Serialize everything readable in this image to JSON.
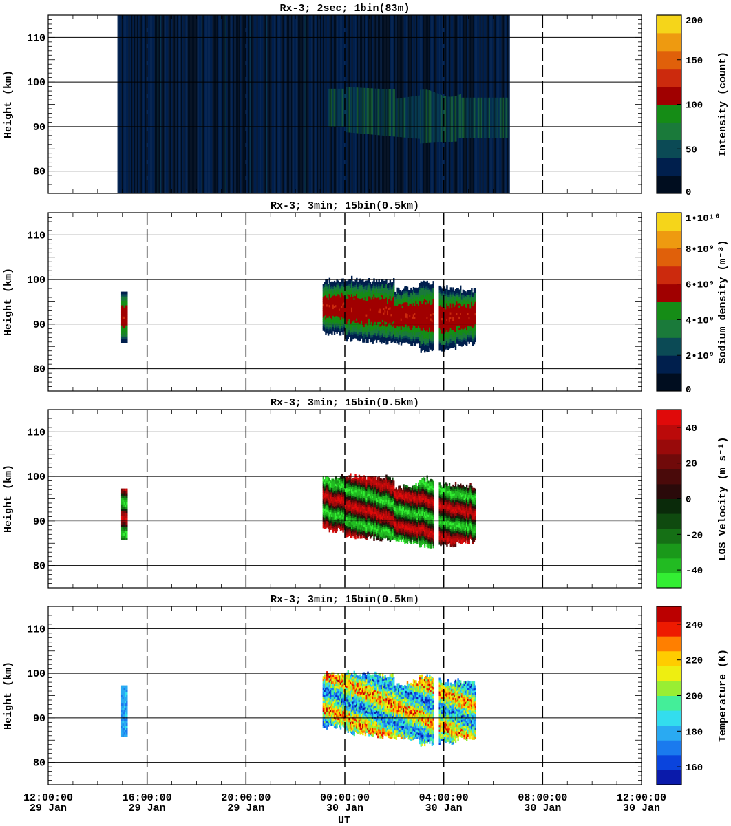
{
  "chart_data": [
    {
      "type": "heatmap",
      "title": "Rx-3;  2sec; 1bin(83m)",
      "ylabel": "Height (km)",
      "ylim": [
        75,
        115
      ],
      "y_ticks": [
        "80",
        "90",
        "100",
        "110"
      ],
      "colorbar": {
        "label": "Intensity (count)",
        "range": [
          0,
          200
        ],
        "ticks": [
          "0",
          "50",
          "100",
          "150",
          "200"
        ],
        "colors": [
          "#000d1f",
          "#001f4d",
          "#0b4a55",
          "#1a7a3a",
          "#158c16",
          "#a00000",
          "#cc2a0d",
          "#e0600a",
          "#ee9a10",
          "#f5d51a"
        ]
      },
      "data_start": "29 Jan 14:50",
      "data_end": "30 Jan 06:40",
      "layer_km": [
        85,
        98
      ]
    },
    {
      "type": "heatmap",
      "title": "Rx-3; 3min; 15bin(0.5km)",
      "ylabel": "Height (km)",
      "ylim": [
        75,
        115
      ],
      "y_ticks": [
        "80",
        "90",
        "100",
        "110"
      ],
      "colorbar": {
        "label": "Sodium density (m⁻³)",
        "range": [
          0,
          10000000000
        ],
        "ticks": [
          "0",
          "2•10⁹",
          "4•10⁹",
          "6•10⁹",
          "8•10⁹",
          "1•10¹⁰"
        ],
        "colors": [
          "#000d1f",
          "#001f4d",
          "#0b4a55",
          "#1a7a3a",
          "#158c16",
          "#a00000",
          "#cc2a0d",
          "#e0600a",
          "#ee9a10",
          "#f5d51a"
        ]
      }
    },
    {
      "type": "heatmap",
      "title": "Rx-3; 3min; 15bin(0.5km)",
      "ylabel": "Height (km)",
      "ylim": [
        75,
        115
      ],
      "y_ticks": [
        "80",
        "90",
        "100",
        "110"
      ],
      "colorbar": {
        "label": "LOS Velocity (m s⁻¹)",
        "range": [
          -50,
          50
        ],
        "ticks": [
          "-40",
          "-20",
          "0",
          "20",
          "40"
        ],
        "colors": [
          "#33ee33",
          "#22bb22",
          "#1a991a",
          "#157015",
          "#0f4a0f",
          "#0a2a0a",
          "#2a0a0a",
          "#4a0a0a",
          "#700a0a",
          "#990a0a",
          "#bb0a0a",
          "#e00a0a"
        ]
      }
    },
    {
      "type": "heatmap",
      "title": "Rx-3; 3min; 15bin(0.5km)",
      "ylabel": "Height (km)",
      "ylim": [
        75,
        115
      ],
      "y_ticks": [
        "80",
        "90",
        "100",
        "110"
      ],
      "colorbar": {
        "label": "Temperature (K)",
        "range": [
          150,
          250
        ],
        "ticks": [
          "160",
          "180",
          "200",
          "220",
          "240"
        ],
        "colors": [
          "#0a1aaa",
          "#0a44dd",
          "#1a7aee",
          "#2aaaf2",
          "#33ddee",
          "#44ee99",
          "#99ee33",
          "#eeee11",
          "#ffcc00",
          "#ff7f00",
          "#ee1a00",
          "#bb0000"
        ]
      }
    }
  ],
  "x_axis": {
    "label": "UT",
    "ticks": [
      {
        "time": "12:00:00",
        "date": "29 Jan"
      },
      {
        "time": "16:00:00",
        "date": "29 Jan"
      },
      {
        "time": "20:00:00",
        "date": "29 Jan"
      },
      {
        "time": "00:00:00",
        "date": "30 Jan"
      },
      {
        "time": "04:00:00",
        "date": "30 Jan"
      },
      {
        "time": "08:00:00",
        "date": "30 Jan"
      },
      {
        "time": "12:00:00",
        "date": "30 Jan"
      }
    ]
  }
}
